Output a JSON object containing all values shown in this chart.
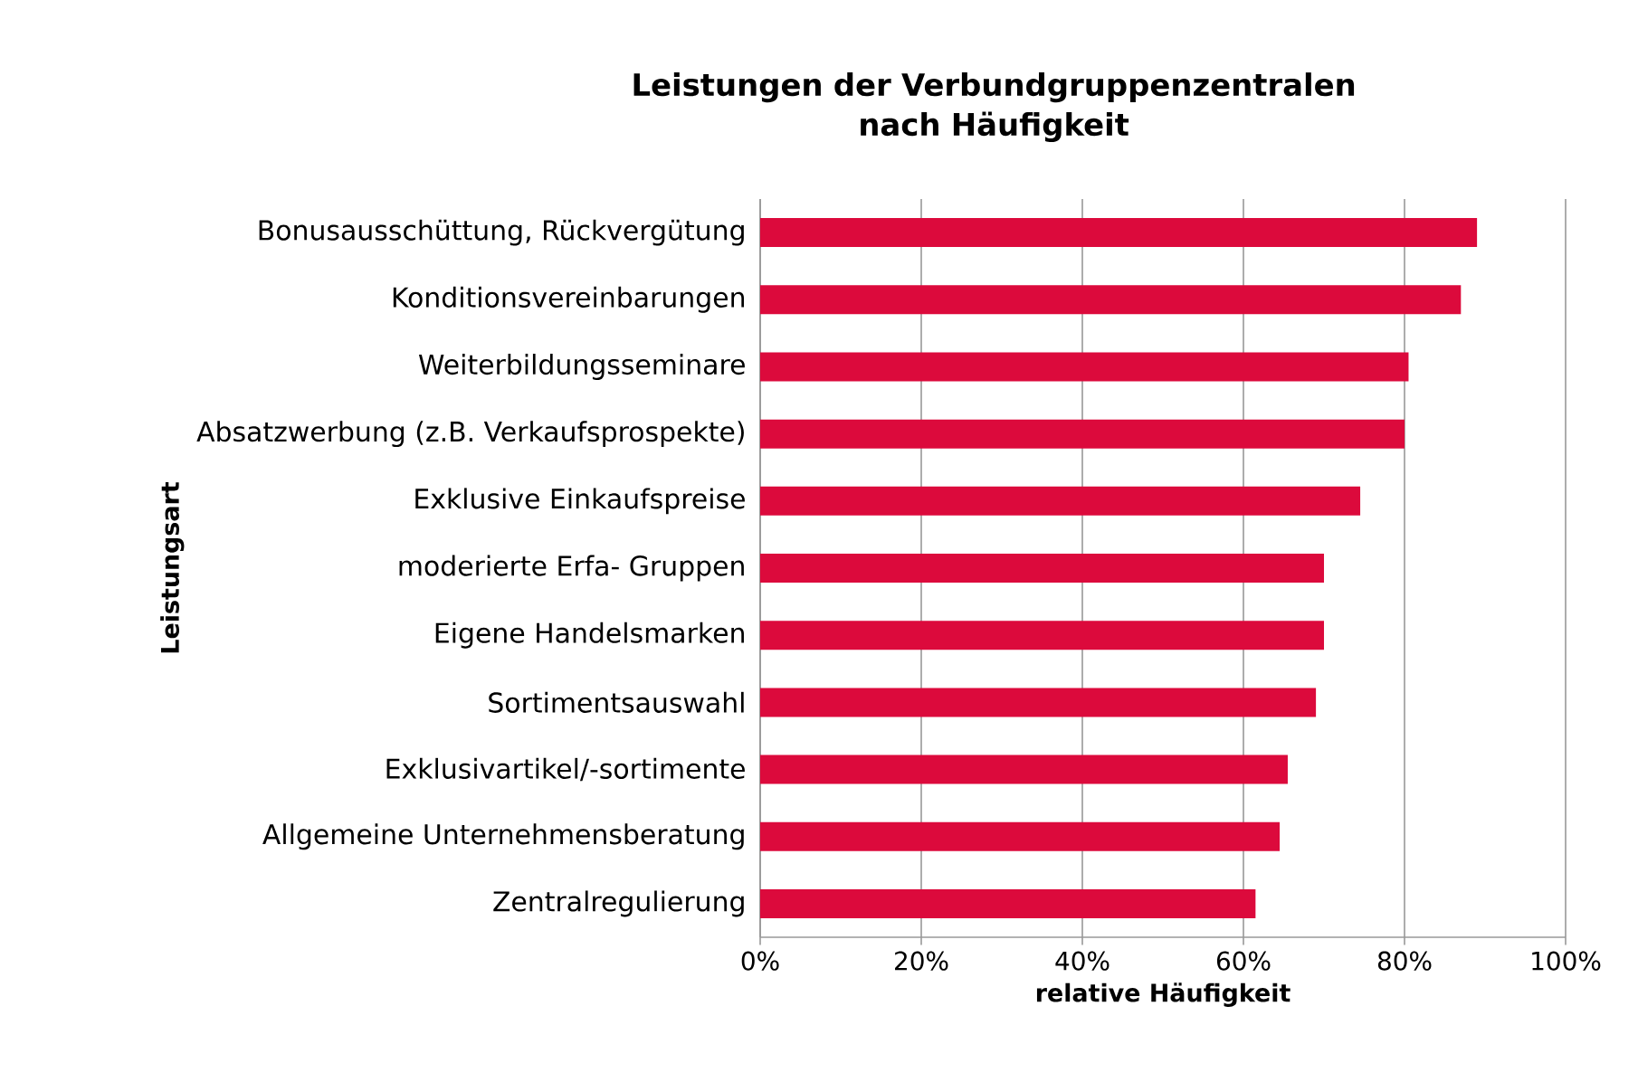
{
  "chart_data": {
    "type": "bar",
    "orientation": "horizontal",
    "title": "Leistungen der Verbundgruppenzentralen nach Häufigkeit",
    "xlabel": "relative Häufigkeit",
    "ylabel": "Leistungsart",
    "categories": [
      "Bonusausschüttung, Rückvergütung",
      "Konditionsvereinbarungen",
      "Weiterbildungsseminare",
      "Absatzwerbung (z.B. Verkaufsprospekte)",
      "Exklusive Einkaufspreise",
      "moderierte Erfa- Gruppen",
      "Eigene Handelsmarken",
      "Sortimentsauswahl",
      "Exklusivartikel/-sortimente",
      "Allgemeine Unternehmensberatung",
      "Zentralregulierung"
    ],
    "values": [
      89,
      87,
      80.5,
      80,
      74.5,
      70,
      70,
      69,
      65.5,
      64.5,
      61.5
    ],
    "color": "#dc0a3c",
    "xlim": [
      0,
      100
    ],
    "xticks": [
      {
        "value": 0,
        "label": "0%"
      },
      {
        "value": 20,
        "label": "20%"
      },
      {
        "value": 40,
        "label": "40%"
      },
      {
        "value": 60,
        "label": "60%"
      },
      {
        "value": 80,
        "label": "80%"
      },
      {
        "value": 100,
        "label": "100%"
      }
    ],
    "grid": "x"
  }
}
